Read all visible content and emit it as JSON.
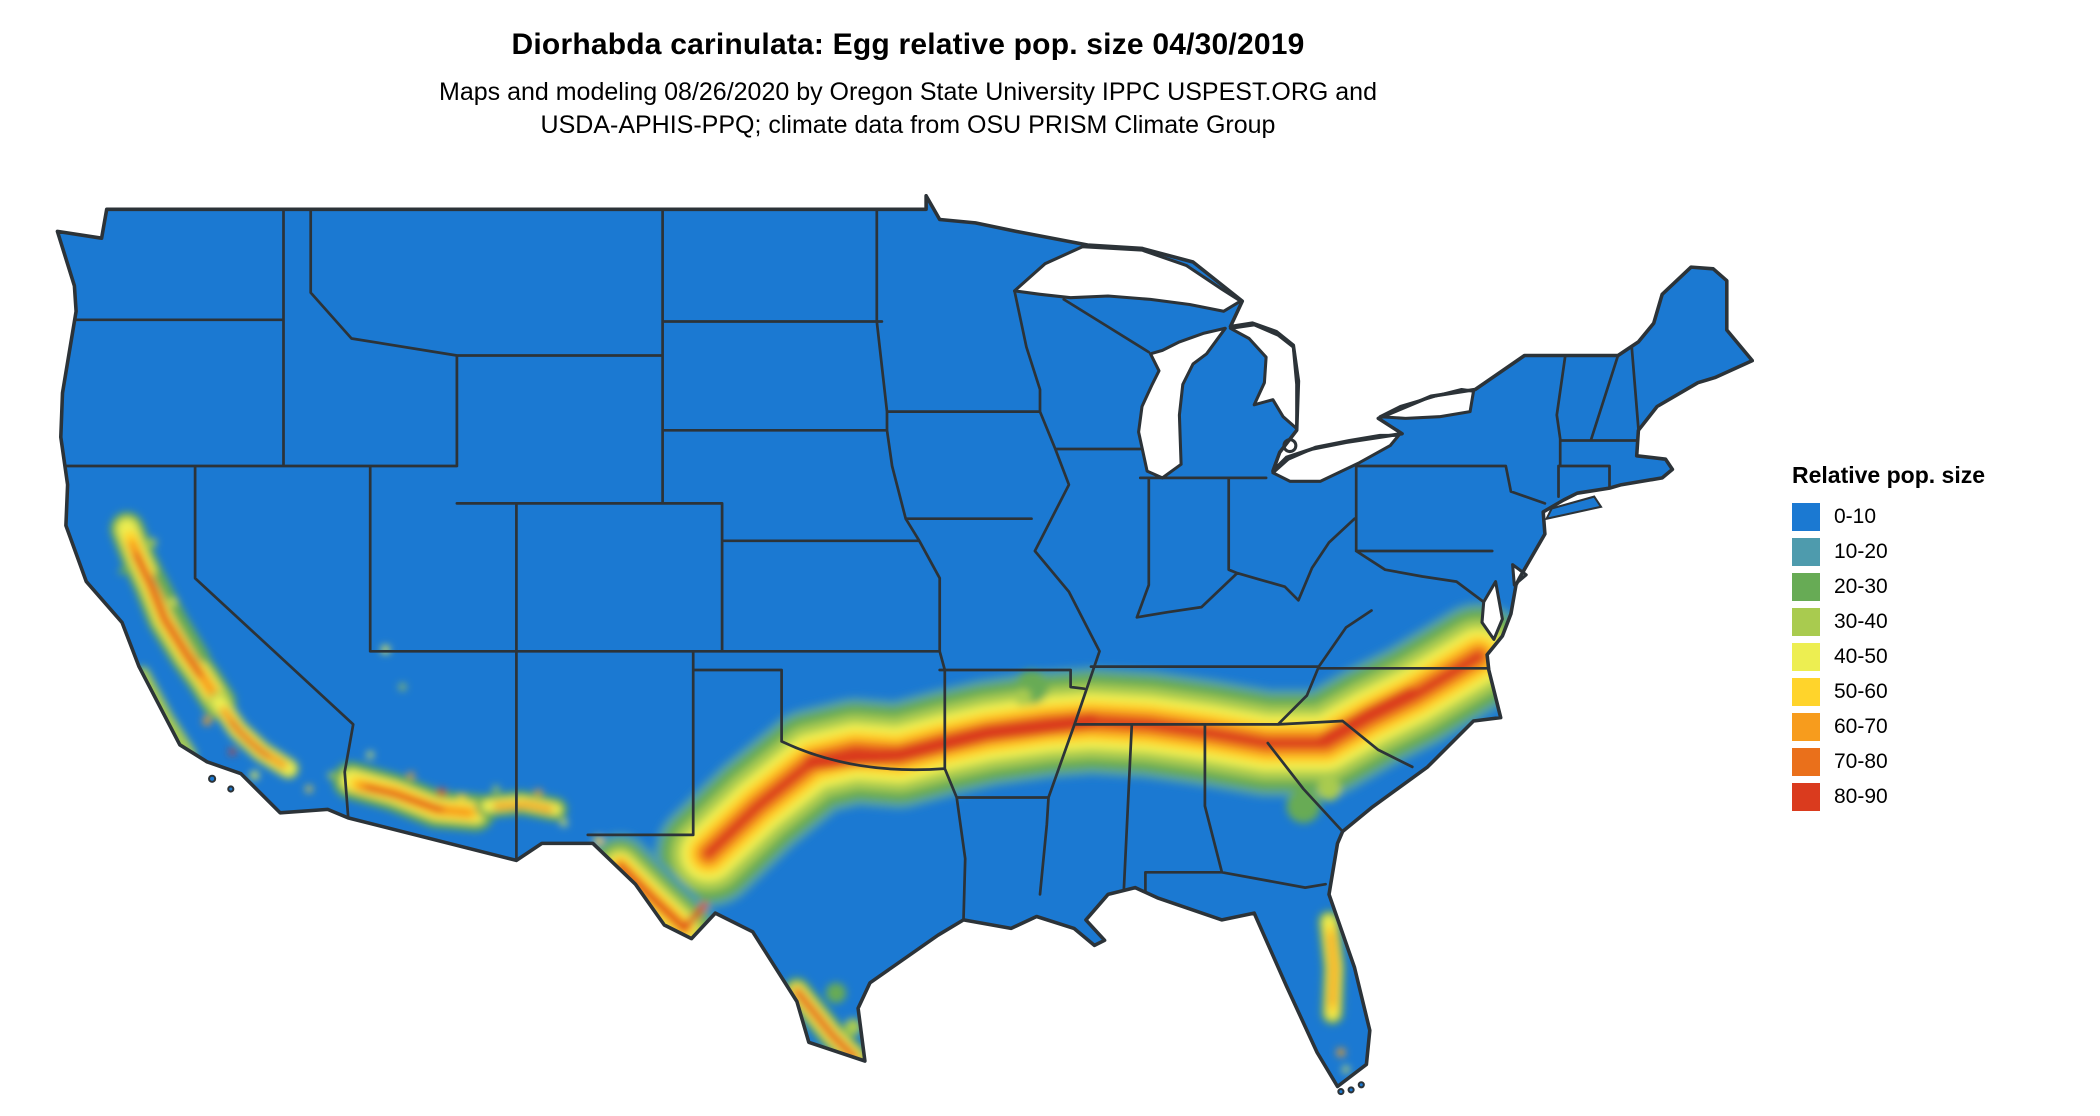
{
  "title": "Diorhabda carinulata: Egg relative pop. size 04/30/2019",
  "subtitle": {
    "line1": "Maps and modeling 08/26/2020 by Oregon State University IPPC USPEST.ORG and",
    "line2": "USDA-APHIS-PPQ; climate data from OSU PRISM Climate Group"
  },
  "legend": {
    "title": "Relative pop. size",
    "items": [
      {
        "label": "0-10",
        "color": "#1B79D2"
      },
      {
        "label": "10-20",
        "color": "#4E9BAD"
      },
      {
        "label": "20-30",
        "color": "#67AB55"
      },
      {
        "label": "30-40",
        "color": "#A9CB4F"
      },
      {
        "label": "40-50",
        "color": "#EDEE51"
      },
      {
        "label": "50-60",
        "color": "#FFD42B"
      },
      {
        "label": "60-70",
        "color": "#F79C1D"
      },
      {
        "label": "70-80",
        "color": "#EA701B"
      },
      {
        "label": "80-90",
        "color": "#DA3B1E"
      }
    ]
  },
  "map": {
    "border_color": "#2C3338",
    "water_color": "#FFFFFF"
  }
}
